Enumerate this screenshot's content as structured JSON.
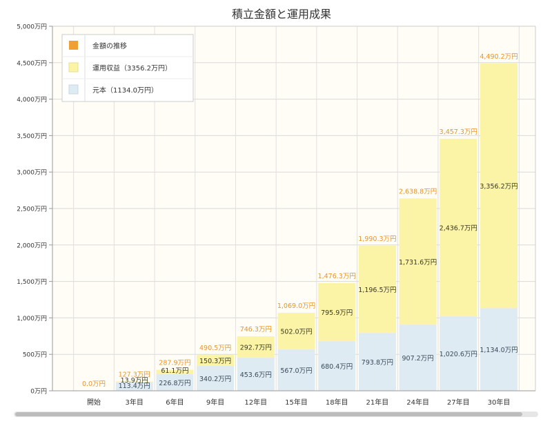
{
  "chart_data": {
    "type": "bar",
    "stacked": true,
    "title": "積立金額と運用成果",
    "categories": [
      "開始",
      "3年目",
      "6年目",
      "9年目",
      "12年目",
      "15年目",
      "18年目",
      "21年目",
      "24年目",
      "27年目",
      "30年目"
    ],
    "series": [
      {
        "name": "元本（1134.0万円）",
        "color": "#deebf3",
        "values": [
          0,
          113.4,
          226.8,
          340.2,
          453.6,
          567.0,
          680.4,
          793.8,
          907.2,
          1020.6,
          1134.0
        ],
        "labels": [
          "",
          "113.4万円",
          "226.8万円",
          "340.2万円",
          "453.6万円",
          "567.0万円",
          "680.4万円",
          "793.8万円",
          "907.2万円",
          "1,020.6万円",
          "1,134.0万円"
        ]
      },
      {
        "name": "運用収益（3356.2万円）",
        "color": "#fbf3a6",
        "values": [
          0,
          13.9,
          61.1,
          150.3,
          292.7,
          502.0,
          795.9,
          1196.5,
          1731.6,
          2436.7,
          3356.2
        ],
        "labels": [
          "",
          "13.9万円",
          "61.1万円",
          "150.3万円",
          "292.7万円",
          "502.0万円",
          "795.9万円",
          "1,196.5万円",
          "1,731.6万円",
          "2,436.7万円",
          "3,356.2万円"
        ]
      }
    ],
    "totals": {
      "name": "金額の推移",
      "color": "#f0a030",
      "values": [
        0,
        127.3,
        287.9,
        490.5,
        746.3,
        1069.0,
        1476.3,
        1990.3,
        2638.8,
        3457.3,
        4490.2
      ],
      "labels": [
        "0.0万円",
        "127.3万円",
        "287.9万円",
        "490.5万円",
        "746.3万円",
        "1,069.0万円",
        "1,476.3万円",
        "1,990.3万円",
        "2,638.8万円",
        "3,457.3万円",
        "4,490.2万円"
      ]
    },
    "ylim": [
      0,
      5000
    ],
    "yticks": [
      0,
      500,
      1000,
      1500,
      2000,
      2500,
      3000,
      3500,
      4000,
      4500,
      5000
    ],
    "ytick_labels": [
      "0万円",
      "500万円",
      "1,000万円",
      "1,500万円",
      "2,000万円",
      "2,500万円",
      "3,000万円",
      "3,500万円",
      "4,000万円",
      "4,500万円",
      "5,000万円"
    ],
    "xlabel": "",
    "ylabel": "",
    "grid": true,
    "legend_position": "top-left",
    "colors": {
      "principal_label": "#3a4a5a",
      "returns_label": "#3a3a20",
      "total_label": "#e8952a",
      "background": "#fffdf6"
    }
  }
}
